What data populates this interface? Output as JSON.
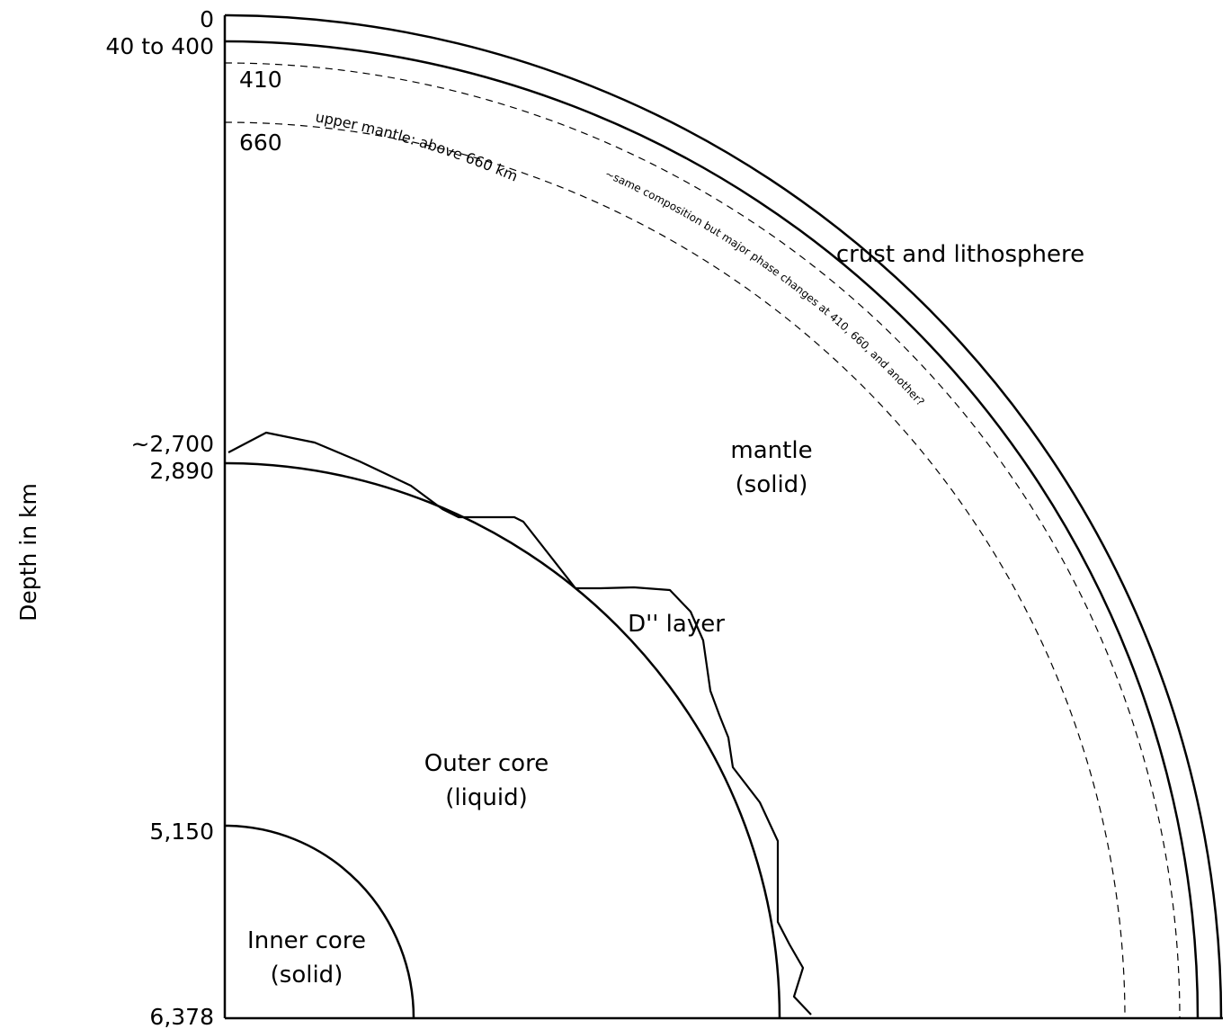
{
  "axis_label": "Depth in km",
  "depth_ticks": {
    "surface": "0",
    "lithosphere_base": "40 to 400",
    "d410": "410",
    "d660": "660",
    "d_layer_top": "~2,700",
    "core_mantle_boundary": "2,890",
    "inner_core_boundary": "5,150",
    "center": "6,378"
  },
  "regions": {
    "crust": "crust and lithosphere",
    "mantle_line1": "mantle",
    "mantle_line2": "(solid)",
    "d_layer": "D'' layer",
    "outer_core_line1": "Outer core",
    "outer_core_line2": "(liquid)",
    "inner_core_line1": "Inner core",
    "inner_core_line2": "(solid)"
  },
  "annotations": {
    "upper_mantle": "upper mantle: above 660 km",
    "phase_changes": "~same composition but major phase changes at 410, 660, and another?"
  },
  "colors": {
    "line": "#000000",
    "background": "#ffffff"
  }
}
